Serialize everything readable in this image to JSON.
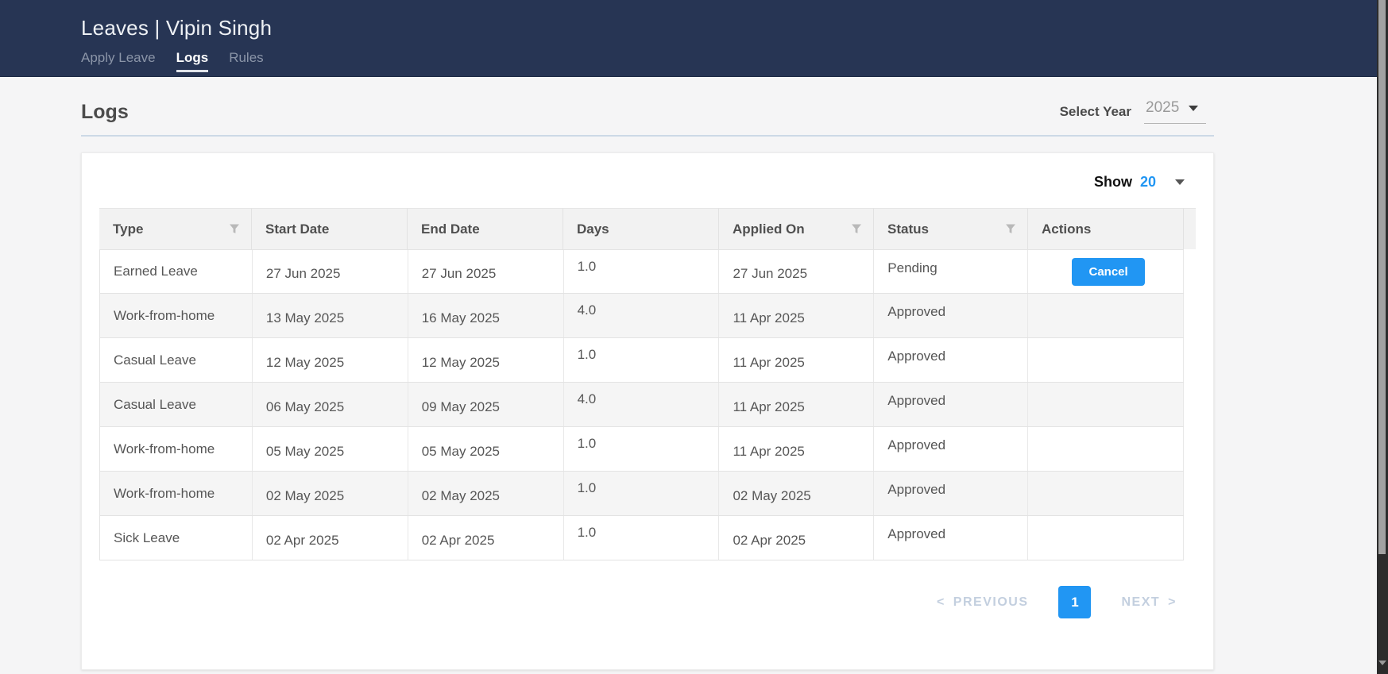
{
  "header": {
    "title": "Leaves | Vipin Singh",
    "tabs": [
      {
        "label": "Apply Leave",
        "active": false
      },
      {
        "label": "Logs",
        "active": true
      },
      {
        "label": "Rules",
        "active": false
      }
    ]
  },
  "page": {
    "heading": "Logs",
    "year_selector": {
      "label": "Select Year",
      "value": "2025"
    }
  },
  "table_card": {
    "show": {
      "label": "Show",
      "value": "20"
    },
    "columns": [
      {
        "label": "Type",
        "filter": true
      },
      {
        "label": "Start Date",
        "filter": false
      },
      {
        "label": "End Date",
        "filter": false
      },
      {
        "label": "Days",
        "filter": false
      },
      {
        "label": "Applied On",
        "filter": true
      },
      {
        "label": "Status",
        "filter": true
      },
      {
        "label": "Actions",
        "filter": false
      }
    ],
    "rows": [
      {
        "type": "Earned Leave",
        "start": "27 Jun 2025",
        "end": "27 Jun 2025",
        "days": "1.0",
        "applied": "27 Jun 2025",
        "status": "Pending",
        "action": "Cancel"
      },
      {
        "type": "Work-from-home",
        "start": "13 May 2025",
        "end": "16 May 2025",
        "days": "4.0",
        "applied": "11 Apr 2025",
        "status": "Approved",
        "action": ""
      },
      {
        "type": "Casual Leave",
        "start": "12 May 2025",
        "end": "12 May 2025",
        "days": "1.0",
        "applied": "11 Apr 2025",
        "status": "Approved",
        "action": ""
      },
      {
        "type": "Casual Leave",
        "start": "06 May 2025",
        "end": "09 May 2025",
        "days": "4.0",
        "applied": "11 Apr 2025",
        "status": "Approved",
        "action": ""
      },
      {
        "type": "Work-from-home",
        "start": "05 May 2025",
        "end": "05 May 2025",
        "days": "1.0",
        "applied": "11 Apr 2025",
        "status": "Approved",
        "action": ""
      },
      {
        "type": "Work-from-home",
        "start": "02 May 2025",
        "end": "02 May 2025",
        "days": "1.0",
        "applied": "02 May 2025",
        "status": "Approved",
        "action": ""
      },
      {
        "type": "Sick Leave",
        "start": "02 Apr 2025",
        "end": "02 Apr 2025",
        "days": "1.0",
        "applied": "02 Apr 2025",
        "status": "Approved",
        "action": ""
      }
    ],
    "pagination": {
      "prev_arrow": "<",
      "previous": "PREVIOUS",
      "page": "1",
      "next": "NEXT",
      "next_arrow": ">"
    }
  },
  "colors": {
    "navbar": "#273554",
    "accent_blue": "#2196f3",
    "stripe": "#f5f5f5",
    "header_bg": "#f2f2f2",
    "pagination_disabled": "#c3cfdf"
  }
}
